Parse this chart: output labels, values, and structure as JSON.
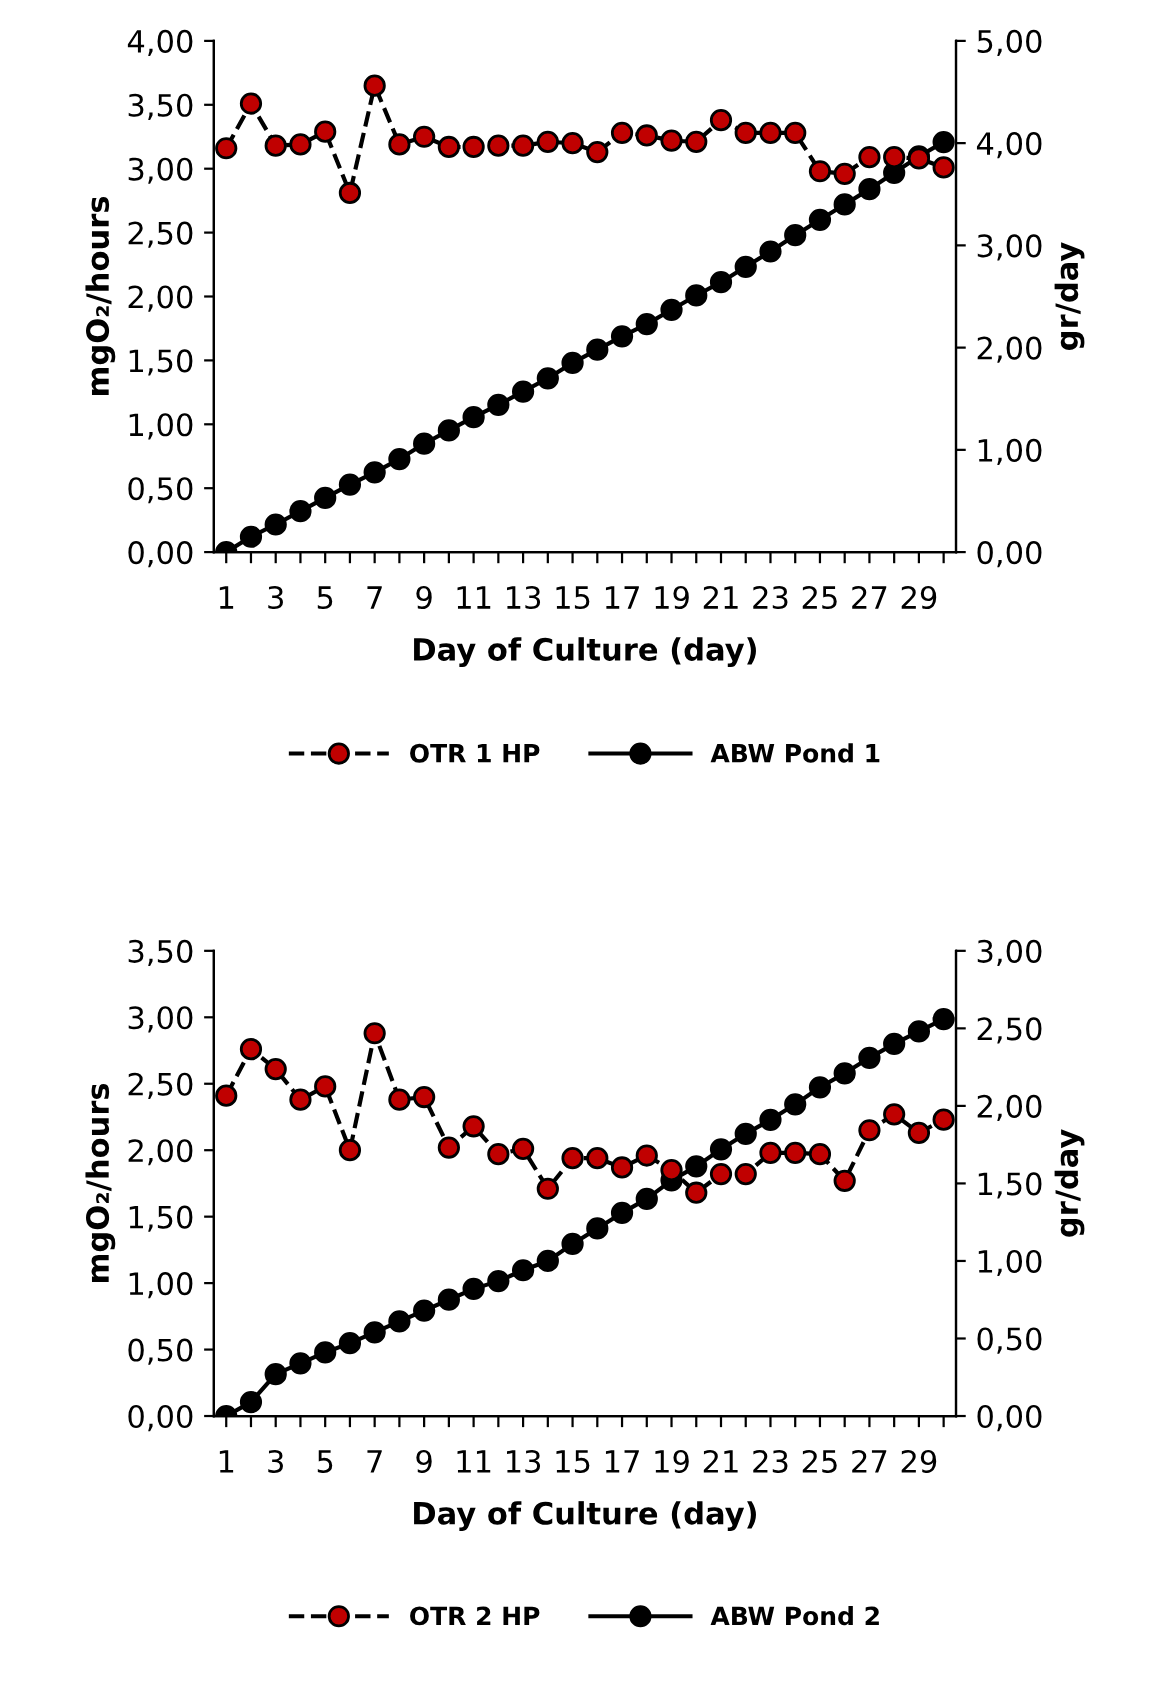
{
  "chart_data": [
    {
      "type": "line",
      "xlabel": "Day of Culture (day)",
      "ylabel": "mgO₂/hours",
      "y2label": "gr/day",
      "categories": [
        "1",
        null,
        "3",
        null,
        "5",
        null,
        "7",
        null,
        "9",
        null,
        "11",
        null,
        "13",
        null,
        "15",
        null,
        "17",
        null,
        "19",
        null,
        "21",
        null,
        "23",
        null,
        "25",
        null,
        "27",
        null,
        "29",
        null
      ],
      "ylim": [
        0,
        4
      ],
      "yticks": [
        {
          "value": 0,
          "label": "0,00"
        },
        {
          "value": 0.5,
          "label": "0,50"
        },
        {
          "value": 1,
          "label": "1,00"
        },
        {
          "value": 1.5,
          "label": "1,50"
        },
        {
          "value": 2,
          "label": "2,00"
        },
        {
          "value": 2.5,
          "label": "2,50"
        },
        {
          "value": 3,
          "label": "3,00"
        },
        {
          "value": 3.5,
          "label": "3,50"
        },
        {
          "value": 4,
          "label": "4,00"
        }
      ],
      "y2lim": [
        0,
        5
      ],
      "y2ticks": [
        {
          "value": 0,
          "label": "0,00"
        },
        {
          "value": 1,
          "label": "1,00"
        },
        {
          "value": 2,
          "label": "2,00"
        },
        {
          "value": 3,
          "label": "3,00"
        },
        {
          "value": 4,
          "label": "4,00"
        },
        {
          "value": 5,
          "label": "5,00"
        }
      ],
      "legend": "bottom",
      "grid": false,
      "marker": "circle",
      "series": [
        {
          "name": "OTR 1 HP",
          "color": "#c00000",
          "line_style": "dashed",
          "values": [
            3.16,
            3.51,
            3.18,
            3.19,
            3.29,
            2.81,
            3.65,
            3.19,
            3.25,
            3.17,
            3.17,
            3.18,
            3.18,
            3.21,
            3.2,
            3.13,
            3.28,
            3.26,
            3.22,
            3.21,
            3.38,
            3.28,
            3.28,
            3.28,
            2.98,
            2.96,
            3.09,
            3.09,
            3.08,
            3.01
          ]
        },
        {
          "name": "ABW Pond 1",
          "color": "#000000",
          "line_style": "solid",
          "axis": "y2",
          "values": [
            0,
            0.15,
            0.27,
            0.4,
            0.53,
            0.66,
            0.78,
            0.91,
            1.06,
            1.19,
            1.32,
            1.44,
            1.57,
            1.7,
            1.85,
            1.98,
            2.11,
            2.23,
            2.37,
            2.51,
            2.64,
            2.79,
            2.94,
            3.1,
            3.25,
            3.4,
            3.55,
            3.71,
            3.87,
            4.01
          ]
        }
      ]
    },
    {
      "type": "line",
      "xlabel": "Day of Culture (day)",
      "ylabel": "mgO₂/hours",
      "y2label": "gr/day",
      "categories": [
        "1",
        null,
        "3",
        null,
        "5",
        null,
        "7",
        null,
        "9",
        null,
        "11",
        null,
        "13",
        null,
        "15",
        null,
        "17",
        null,
        "19",
        null,
        "21",
        null,
        "23",
        null,
        "25",
        null,
        "27",
        null,
        "29",
        null
      ],
      "ylim": [
        0,
        3.5
      ],
      "yticks": [
        {
          "value": 0,
          "label": "0,00"
        },
        {
          "value": 0.5,
          "label": "0,50"
        },
        {
          "value": 1,
          "label": "1,00"
        },
        {
          "value": 1.5,
          "label": "1,50"
        },
        {
          "value": 2,
          "label": "2,00"
        },
        {
          "value": 2.5,
          "label": "2,50"
        },
        {
          "value": 3,
          "label": "3,00"
        },
        {
          "value": 3.5,
          "label": "3,50"
        }
      ],
      "y2lim": [
        0,
        3
      ],
      "y2ticks": [
        {
          "value": 0,
          "label": "0,00"
        },
        {
          "value": 0.5,
          "label": "0,50"
        },
        {
          "value": 1,
          "label": "1,00"
        },
        {
          "value": 1.5,
          "label": "1,50"
        },
        {
          "value": 2,
          "label": "2,00"
        },
        {
          "value": 2.5,
          "label": "2,50"
        },
        {
          "value": 3,
          "label": "3,00"
        }
      ],
      "legend": "bottom",
      "grid": false,
      "marker": "circle",
      "series": [
        {
          "name": "OTR 2 HP",
          "color": "#c00000",
          "line_style": "dashed",
          "values": [
            2.41,
            2.76,
            2.61,
            2.38,
            2.48,
            2.0,
            2.88,
            2.38,
            2.4,
            2.02,
            2.18,
            1.97,
            2.01,
            1.71,
            1.94,
            1.94,
            1.87,
            1.96,
            1.85,
            1.68,
            1.82,
            1.82,
            1.98,
            1.98,
            1.97,
            1.77,
            2.15,
            2.27,
            2.13,
            2.23
          ]
        },
        {
          "name": "ABW Pond 2",
          "color": "#000000",
          "line_style": "solid",
          "axis": "y2",
          "values": [
            0,
            0.09,
            0.27,
            0.34,
            0.41,
            0.47,
            0.54,
            0.61,
            0.68,
            0.75,
            0.82,
            0.87,
            0.94,
            1.0,
            1.11,
            1.21,
            1.31,
            1.4,
            1.52,
            1.61,
            1.72,
            1.82,
            1.91,
            2.01,
            2.12,
            2.21,
            2.31,
            2.4,
            2.48,
            2.56
          ]
        }
      ]
    }
  ]
}
